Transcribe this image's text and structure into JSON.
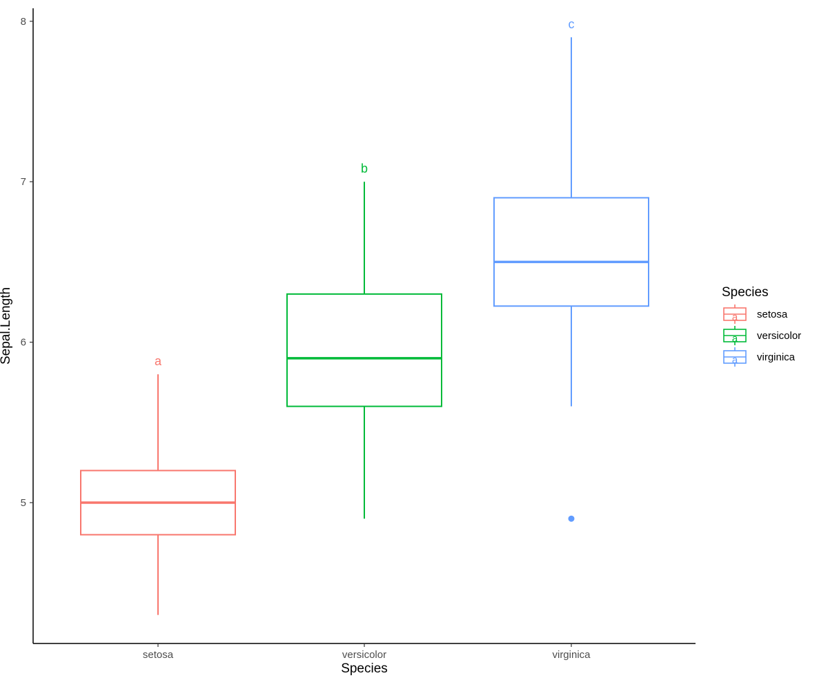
{
  "chart_data": {
    "type": "boxplot",
    "title": "",
    "xlabel": "Species",
    "ylabel": "Sepal.Length",
    "categories": [
      "setosa",
      "versicolor",
      "virginica"
    ],
    "ylim": [
      4.2,
      8.08
    ],
    "yticks": [
      5,
      6,
      7,
      8
    ],
    "ytick_labels": [
      "5",
      "6",
      "7",
      "8"
    ],
    "grid": false,
    "legend": {
      "title": "Species",
      "position": "right",
      "key_letter": "a",
      "entries": [
        "setosa",
        "versicolor",
        "virginica"
      ]
    },
    "colors": {
      "setosa": "#F8766D",
      "versicolor": "#00BA38",
      "virginica": "#619CFF"
    },
    "series": [
      {
        "name": "setosa",
        "min": 4.3,
        "q1": 4.8,
        "median": 5.0,
        "q3": 5.2,
        "max": 5.8,
        "outliers": [],
        "label": "a"
      },
      {
        "name": "versicolor",
        "min": 4.9,
        "q1": 5.6,
        "median": 5.9,
        "q3": 6.3,
        "max": 7.0,
        "outliers": [],
        "label": "b"
      },
      {
        "name": "virginica",
        "min": 5.6,
        "q1": 6.225,
        "median": 6.5,
        "q3": 6.9,
        "max": 7.9,
        "outliers": [
          4.9
        ],
        "label": "c"
      }
    ]
  }
}
